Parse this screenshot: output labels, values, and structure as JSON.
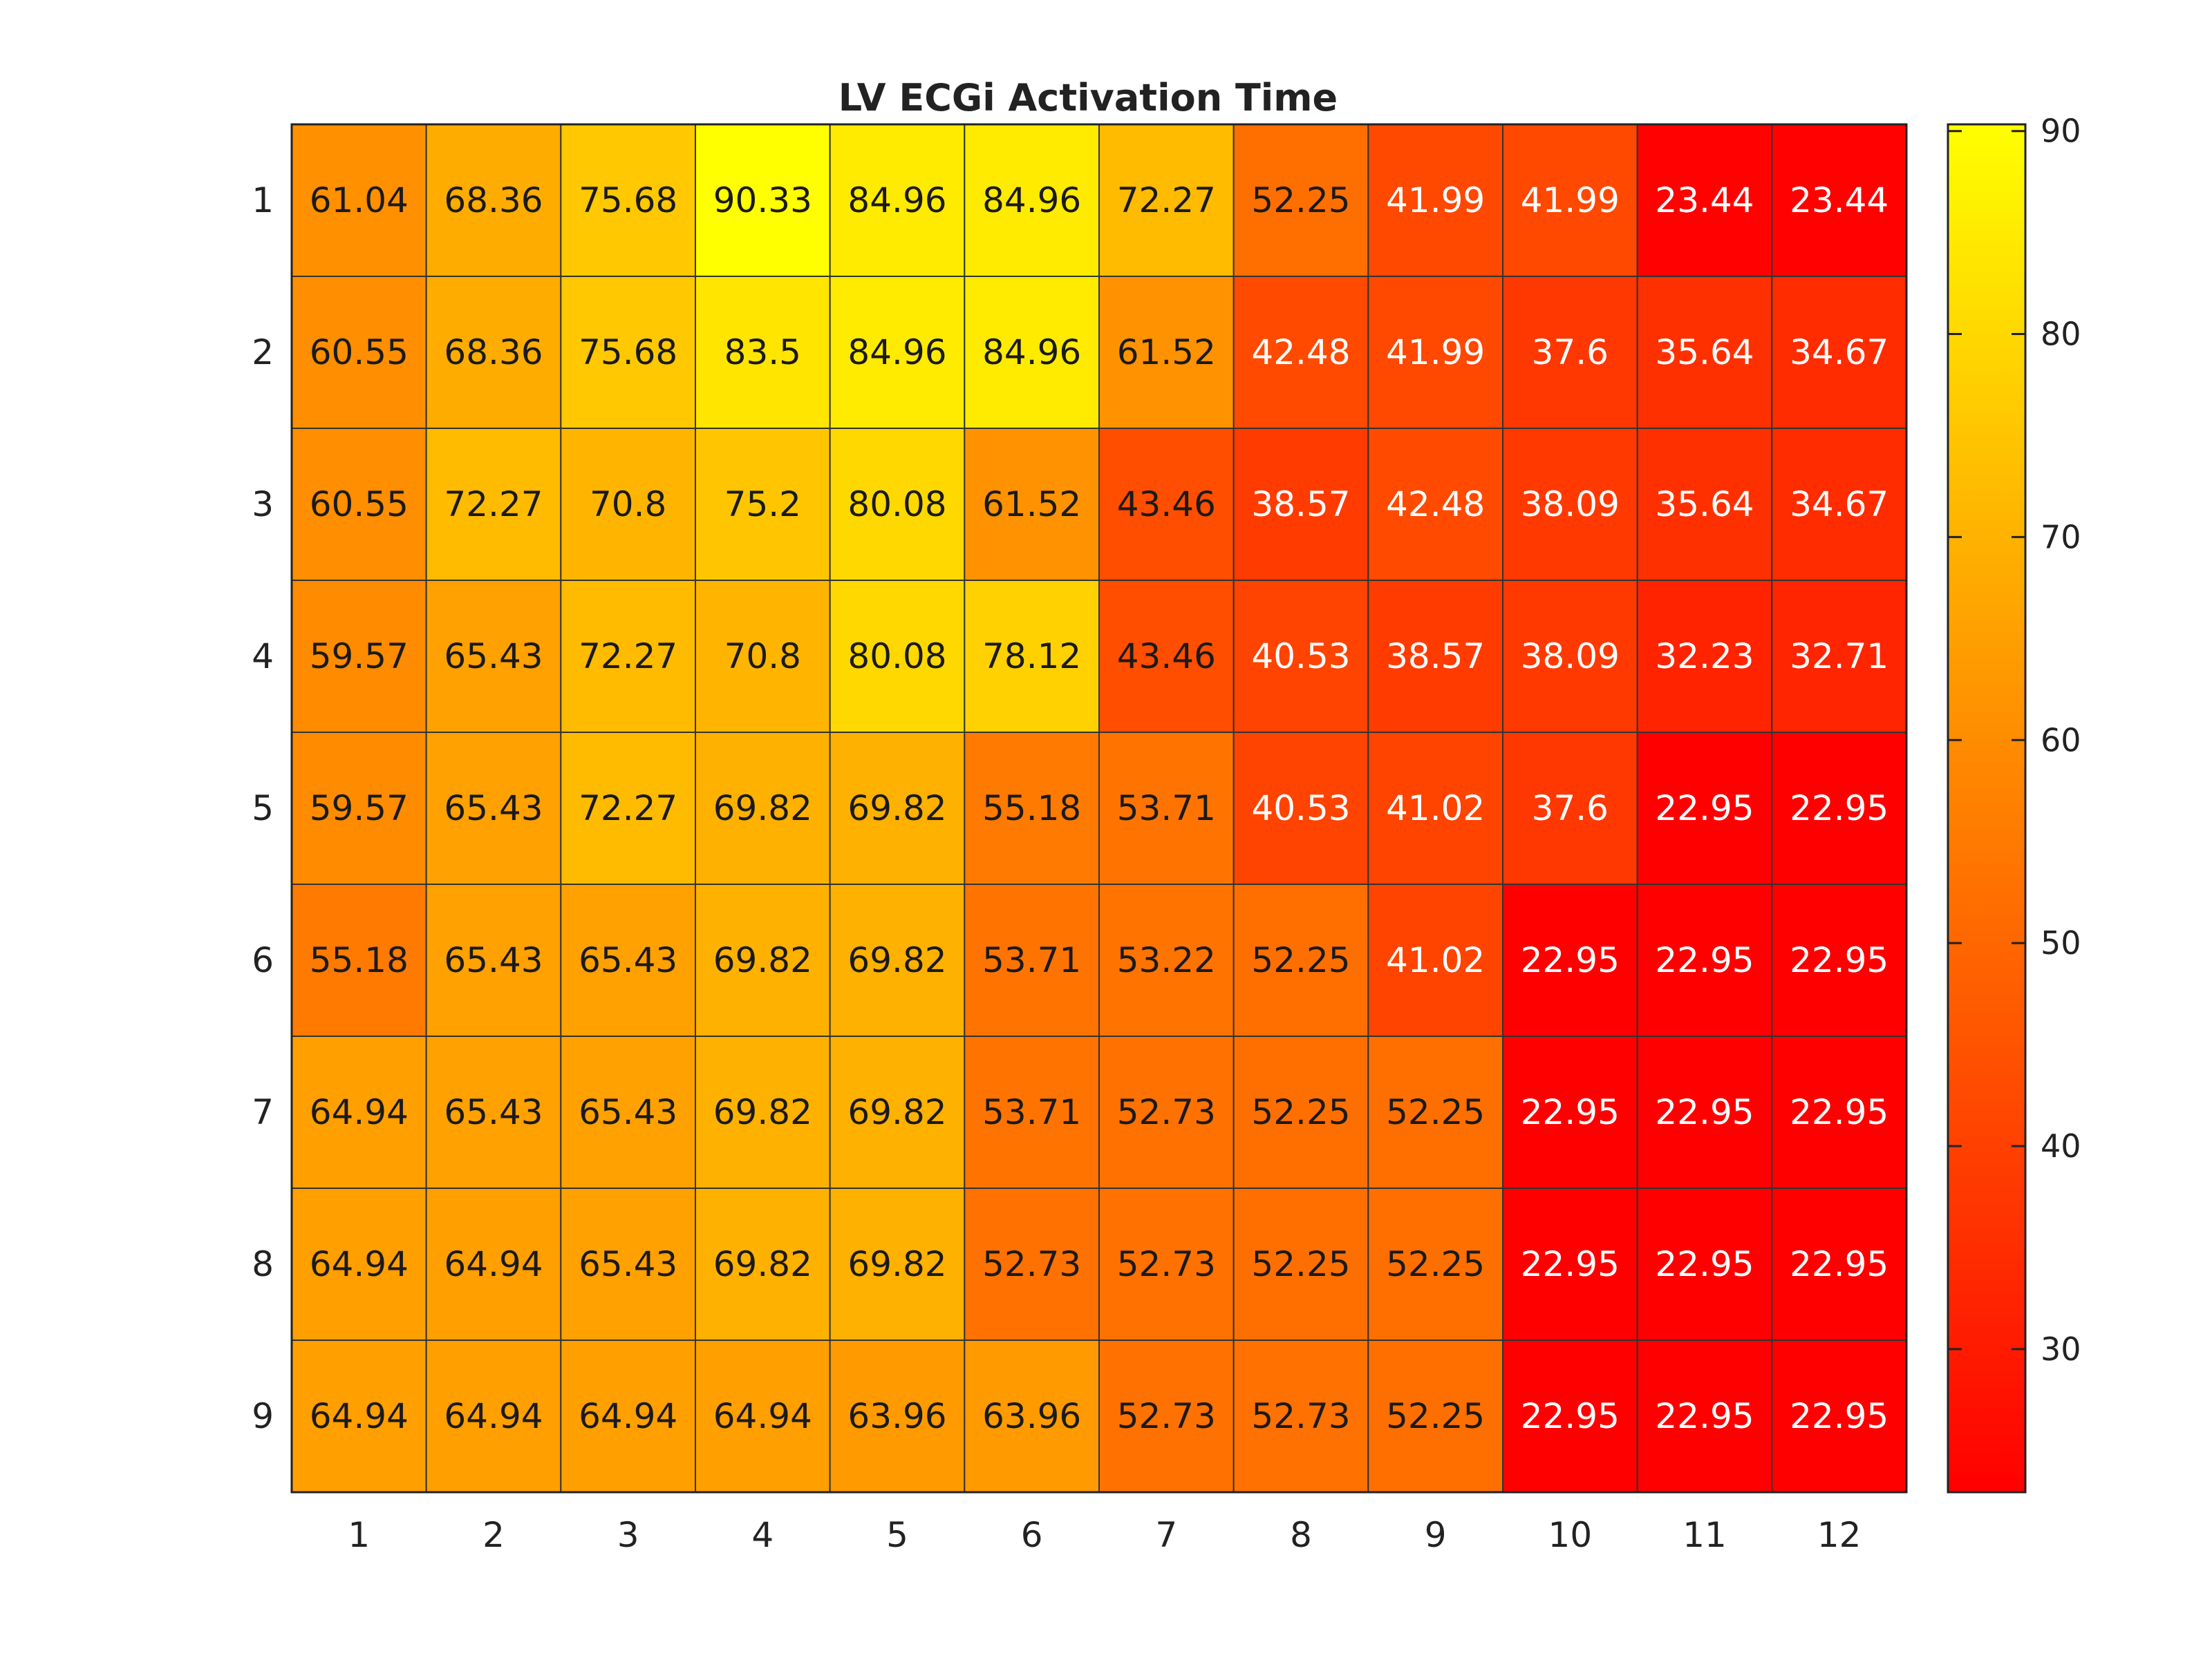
{
  "chart_data": {
    "type": "heatmap",
    "title": "LV ECGi Activation Time",
    "xlabel": "",
    "ylabel": "",
    "x": [
      "1",
      "2",
      "3",
      "4",
      "5",
      "6",
      "7",
      "8",
      "9",
      "10",
      "11",
      "12"
    ],
    "y": [
      "1",
      "2",
      "3",
      "4",
      "5",
      "6",
      "7",
      "8",
      "9"
    ],
    "values": [
      [
        61.04,
        68.36,
        75.68,
        90.33,
        84.96,
        84.96,
        72.27,
        52.25,
        41.99,
        41.99,
        23.44,
        23.44
      ],
      [
        60.55,
        68.36,
        75.68,
        83.5,
        84.96,
        84.96,
        61.52,
        42.48,
        41.99,
        37.6,
        35.64,
        34.67
      ],
      [
        60.55,
        72.27,
        70.8,
        75.2,
        80.08,
        61.52,
        43.46,
        38.57,
        42.48,
        38.09,
        35.64,
        34.67
      ],
      [
        59.57,
        65.43,
        72.27,
        70.8,
        80.08,
        78.12,
        43.46,
        40.53,
        38.57,
        38.09,
        32.23,
        32.71
      ],
      [
        59.57,
        65.43,
        72.27,
        69.82,
        69.82,
        55.18,
        53.71,
        40.53,
        41.02,
        37.6,
        22.95,
        22.95
      ],
      [
        55.18,
        65.43,
        65.43,
        69.82,
        69.82,
        53.71,
        53.22,
        52.25,
        41.02,
        22.95,
        22.95,
        22.95
      ],
      [
        64.94,
        65.43,
        65.43,
        69.82,
        69.82,
        53.71,
        52.73,
        52.25,
        52.25,
        22.95,
        22.95,
        22.95
      ],
      [
        64.94,
        64.94,
        65.43,
        69.82,
        69.82,
        52.73,
        52.73,
        52.25,
        52.25,
        22.95,
        22.95,
        22.95
      ],
      [
        64.94,
        64.94,
        64.94,
        64.94,
        63.96,
        63.96,
        52.73,
        52.73,
        52.25,
        22.95,
        22.95,
        22.95
      ]
    ],
    "value_labels": [
      [
        "61.04",
        "68.36",
        "75.68",
        "90.33",
        "84.96",
        "84.96",
        "72.27",
        "52.25",
        "41.99",
        "41.99",
        "23.44",
        "23.44"
      ],
      [
        "60.55",
        "68.36",
        "75.68",
        "83.5",
        "84.96",
        "84.96",
        "61.52",
        "42.48",
        "41.99",
        "37.6",
        "35.64",
        "34.67"
      ],
      [
        "60.55",
        "72.27",
        "70.8",
        "75.2",
        "80.08",
        "61.52",
        "43.46",
        "38.57",
        "42.48",
        "38.09",
        "35.64",
        "34.67"
      ],
      [
        "59.57",
        "65.43",
        "72.27",
        "70.8",
        "80.08",
        "78.12",
        "43.46",
        "40.53",
        "38.57",
        "38.09",
        "32.23",
        "32.71"
      ],
      [
        "59.57",
        "65.43",
        "72.27",
        "69.82",
        "69.82",
        "55.18",
        "53.71",
        "40.53",
        "41.02",
        "37.6",
        "22.95",
        "22.95"
      ],
      [
        "55.18",
        "65.43",
        "65.43",
        "69.82",
        "69.82",
        "53.71",
        "53.22",
        "52.25",
        "41.02",
        "22.95",
        "22.95",
        "22.95"
      ],
      [
        "64.94",
        "65.43",
        "65.43",
        "69.82",
        "69.82",
        "53.71",
        "52.73",
        "52.25",
        "52.25",
        "22.95",
        "22.95",
        "22.95"
      ],
      [
        "64.94",
        "64.94",
        "65.43",
        "69.82",
        "69.82",
        "52.73",
        "52.73",
        "52.25",
        "52.25",
        "22.95",
        "22.95",
        "22.95"
      ],
      [
        "64.94",
        "64.94",
        "64.94",
        "64.94",
        "63.96",
        "63.96",
        "52.73",
        "52.73",
        "52.25",
        "22.95",
        "22.95",
        "22.95"
      ]
    ],
    "colormap": "autumn",
    "color_low": "#ff0000",
    "color_high": "#ffff00",
    "clim": [
      22.95,
      90.33
    ],
    "colorbar": {
      "ticks": [
        30,
        40,
        50,
        60,
        70,
        80,
        90
      ],
      "tick_labels": [
        "30",
        "40",
        "50",
        "60",
        "70",
        "80",
        "90"
      ]
    },
    "grid": true,
    "cell_border_color": "#333333",
    "label_dark_color": "#1a1a1a",
    "label_light_color": "#ffffff"
  }
}
